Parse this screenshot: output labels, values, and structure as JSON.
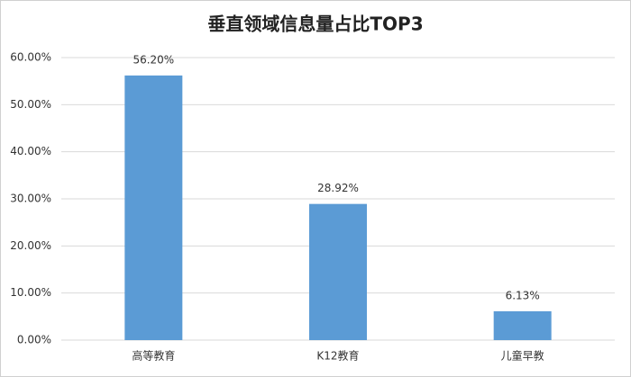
{
  "chart_data": {
    "type": "bar",
    "title": "垂直领域信息量占比TOP3",
    "categories": [
      "高等教育",
      "K12教育",
      "儿童早教"
    ],
    "values": [
      56.2,
      28.92,
      6.13
    ],
    "value_labels": [
      "56.20%",
      "28.92%",
      "6.13%"
    ],
    "color": "#5b9bd5",
    "ylim": [
      0,
      60
    ],
    "yticks": [
      {
        "value": 0,
        "label": "0.00%"
      },
      {
        "value": 10,
        "label": "10.00%"
      },
      {
        "value": 20,
        "label": "20.00%"
      },
      {
        "value": 30,
        "label": "30.00%"
      },
      {
        "value": 40,
        "label": "40.00%"
      },
      {
        "value": 50,
        "label": "50.00%"
      },
      {
        "value": 60,
        "label": "60.00%"
      }
    ],
    "grid": true
  }
}
